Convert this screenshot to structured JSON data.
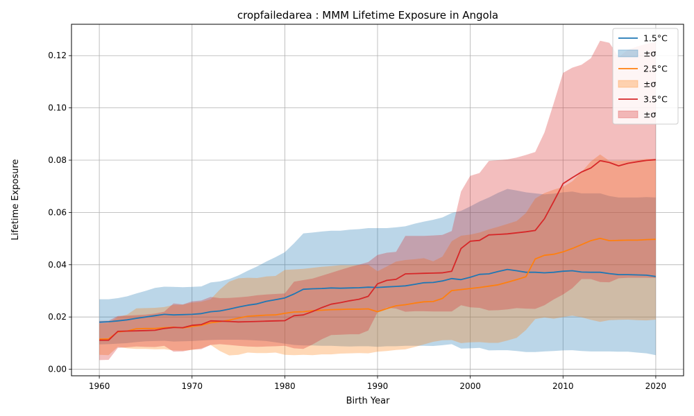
{
  "chart_data": {
    "type": "line",
    "title": "cropfailedarea : MMM Lifetime Exposure in Angola",
    "xlabel": "Birth Year",
    "ylabel": "Lifetime Exposure",
    "xlim": [
      1957,
      2023
    ],
    "ylim": [
      -0.0025,
      0.132
    ],
    "xticks": [
      1960,
      1970,
      1980,
      1990,
      2000,
      2010,
      2020
    ],
    "xtick_labels": [
      "1960",
      "1970",
      "1980",
      "1990",
      "2000",
      "2010",
      "2020"
    ],
    "yticks": [
      0.0,
      0.02,
      0.04,
      0.06,
      0.08,
      0.1,
      0.12
    ],
    "ytick_labels": [
      "0.00",
      "0.02",
      "0.04",
      "0.06",
      "0.08",
      "0.10",
      "0.12"
    ],
    "grid": true,
    "legend_position": "top-right",
    "legend": [
      {
        "label": "1.5°C",
        "kind": "line",
        "color": "#1f77b4"
      },
      {
        "label": "±σ",
        "kind": "band",
        "color": "#1f77b4"
      },
      {
        "label": "2.5°C",
        "kind": "line",
        "color": "#ff7f0e"
      },
      {
        "label": "±σ",
        "kind": "band",
        "color": "#ff7f0e"
      },
      {
        "label": "3.5°C",
        "kind": "line",
        "color": "#d62728"
      },
      {
        "label": "±σ",
        "kind": "band",
        "color": "#d62728"
      }
    ],
    "x": [
      1960,
      1961,
      1962,
      1963,
      1964,
      1965,
      1966,
      1967,
      1968,
      1969,
      1970,
      1971,
      1972,
      1973,
      1974,
      1975,
      1976,
      1977,
      1978,
      1979,
      1980,
      1981,
      1982,
      1983,
      1984,
      1985,
      1986,
      1987,
      1988,
      1989,
      1990,
      1991,
      1992,
      1993,
      1994,
      1995,
      1996,
      1997,
      1998,
      1999,
      2000,
      2001,
      2002,
      2003,
      2004,
      2005,
      2006,
      2007,
      2008,
      2009,
      2010,
      2011,
      2012,
      2013,
      2014,
      2015,
      2016,
      2017,
      2018,
      2019,
      2020
    ],
    "series": [
      {
        "name": "1.5°C",
        "color": "#1f77b4",
        "values": [
          0.018,
          0.0182,
          0.0185,
          0.0189,
          0.0195,
          0.02,
          0.0205,
          0.021,
          0.0208,
          0.0209,
          0.021,
          0.0213,
          0.022,
          0.0223,
          0.023,
          0.0238,
          0.0245,
          0.025,
          0.026,
          0.0266,
          0.0273,
          0.0288,
          0.0306,
          0.0308,
          0.0309,
          0.0311,
          0.031,
          0.0311,
          0.0312,
          0.0314,
          0.0313,
          0.0315,
          0.0317,
          0.0319,
          0.0325,
          0.0331,
          0.0332,
          0.0338,
          0.0347,
          0.0343,
          0.0352,
          0.0363,
          0.0365,
          0.0374,
          0.0382,
          0.0377,
          0.0371,
          0.0371,
          0.0369,
          0.0371,
          0.0375,
          0.0377,
          0.0372,
          0.0371,
          0.0371,
          0.0366,
          0.0362,
          0.0362,
          0.0361,
          0.036,
          0.0355
        ],
        "lower": [
          0.0095,
          0.0096,
          0.0098,
          0.01,
          0.0104,
          0.0107,
          0.0108,
          0.0109,
          0.0106,
          0.0107,
          0.0108,
          0.011,
          0.0112,
          0.0113,
          0.0113,
          0.0113,
          0.0112,
          0.011,
          0.0108,
          0.0103,
          0.0098,
          0.0093,
          0.0091,
          0.0091,
          0.009,
          0.009,
          0.0088,
          0.0087,
          0.0088,
          0.0088,
          0.0086,
          0.0088,
          0.0088,
          0.009,
          0.009,
          0.009,
          0.0089,
          0.0092,
          0.0096,
          0.0079,
          0.008,
          0.0082,
          0.0072,
          0.0073,
          0.0073,
          0.007,
          0.0066,
          0.0066,
          0.0068,
          0.007,
          0.0072,
          0.0073,
          0.007,
          0.0068,
          0.0068,
          0.0068,
          0.0067,
          0.0067,
          0.0064,
          0.0061,
          0.0054
        ],
        "upper": [
          0.0268,
          0.0268,
          0.0272,
          0.0279,
          0.029,
          0.03,
          0.0311,
          0.0316,
          0.0315,
          0.0314,
          0.0315,
          0.0317,
          0.0332,
          0.0336,
          0.0345,
          0.0359,
          0.0377,
          0.0393,
          0.0412,
          0.0429,
          0.0448,
          0.0482,
          0.052,
          0.0523,
          0.0527,
          0.053,
          0.053,
          0.0534,
          0.0536,
          0.054,
          0.054,
          0.054,
          0.0543,
          0.0547,
          0.0557,
          0.0565,
          0.0572,
          0.0581,
          0.0598,
          0.0606,
          0.0623,
          0.0642,
          0.0657,
          0.0675,
          0.069,
          0.0684,
          0.0677,
          0.0673,
          0.0669,
          0.0672,
          0.0677,
          0.068,
          0.0673,
          0.0673,
          0.0673,
          0.0663,
          0.0657,
          0.0657,
          0.0657,
          0.0659,
          0.0657
        ]
      },
      {
        "name": "2.5°C",
        "color": "#ff7f0e",
        "values": [
          0.0115,
          0.0116,
          0.0143,
          0.0146,
          0.0155,
          0.0156,
          0.0156,
          0.0159,
          0.0161,
          0.0158,
          0.0164,
          0.0168,
          0.0178,
          0.0182,
          0.0188,
          0.0196,
          0.0203,
          0.0205,
          0.0207,
          0.0208,
          0.0214,
          0.0219,
          0.022,
          0.0224,
          0.0226,
          0.0228,
          0.0229,
          0.023,
          0.023,
          0.0231,
          0.022,
          0.0232,
          0.0243,
          0.0247,
          0.0253,
          0.0258,
          0.0259,
          0.0271,
          0.0301,
          0.0305,
          0.0309,
          0.0313,
          0.0318,
          0.0323,
          0.0333,
          0.0343,
          0.0354,
          0.0422,
          0.0436,
          0.044,
          0.0449,
          0.0462,
          0.0477,
          0.0492,
          0.0501,
          0.0492,
          0.0493,
          0.0494,
          0.0494,
          0.0496,
          0.0497
        ],
        "lower": [
          0.0055,
          0.0054,
          0.0086,
          0.008,
          0.0078,
          0.0078,
          0.0076,
          0.0077,
          0.0072,
          0.0071,
          0.0074,
          0.008,
          0.0093,
          0.007,
          0.0053,
          0.0055,
          0.0064,
          0.0062,
          0.0062,
          0.0064,
          0.0055,
          0.0054,
          0.0055,
          0.0054,
          0.0057,
          0.0057,
          0.006,
          0.0061,
          0.0062,
          0.0061,
          0.0067,
          0.007,
          0.0074,
          0.0076,
          0.0085,
          0.0095,
          0.0105,
          0.0111,
          0.0112,
          0.01,
          0.0103,
          0.0104,
          0.0101,
          0.0101,
          0.011,
          0.012,
          0.015,
          0.0192,
          0.0198,
          0.0193,
          0.02,
          0.0205,
          0.0199,
          0.0189,
          0.0181,
          0.0188,
          0.0189,
          0.019,
          0.0188,
          0.0187,
          0.019
        ],
        "upper": [
          0.0175,
          0.0178,
          0.02,
          0.0209,
          0.0233,
          0.0234,
          0.0235,
          0.0238,
          0.0246,
          0.0247,
          0.0255,
          0.0258,
          0.0268,
          0.0305,
          0.0335,
          0.0348,
          0.035,
          0.0349,
          0.0355,
          0.0357,
          0.038,
          0.0382,
          0.0384,
          0.0388,
          0.0392,
          0.0395,
          0.0398,
          0.0398,
          0.0399,
          0.04,
          0.0375,
          0.0393,
          0.0412,
          0.0418,
          0.0421,
          0.0425,
          0.0413,
          0.0431,
          0.049,
          0.0511,
          0.0515,
          0.0523,
          0.0535,
          0.0545,
          0.0556,
          0.0567,
          0.0598,
          0.0653,
          0.0674,
          0.0687,
          0.0698,
          0.0719,
          0.0755,
          0.0795,
          0.0822,
          0.0797,
          0.0797,
          0.0798,
          0.08,
          0.0805,
          0.0805
        ]
      },
      {
        "name": "3.5°C",
        "color": "#d62728",
        "values": [
          0.0111,
          0.0111,
          0.0145,
          0.0146,
          0.0147,
          0.0148,
          0.0149,
          0.0156,
          0.016,
          0.0159,
          0.0168,
          0.0171,
          0.0185,
          0.0184,
          0.0183,
          0.0181,
          0.0182,
          0.0183,
          0.0184,
          0.0185,
          0.0186,
          0.0205,
          0.0208,
          0.0221,
          0.0236,
          0.0249,
          0.0255,
          0.0262,
          0.0268,
          0.0279,
          0.0327,
          0.034,
          0.0344,
          0.0365,
          0.0366,
          0.0367,
          0.0368,
          0.0369,
          0.0375,
          0.0462,
          0.049,
          0.0493,
          0.0514,
          0.0516,
          0.0518,
          0.0522,
          0.0526,
          0.0531,
          0.0576,
          0.0642,
          0.071,
          0.0733,
          0.0755,
          0.077,
          0.0798,
          0.0791,
          0.0778,
          0.0788,
          0.0794,
          0.0799,
          0.0802
        ],
        "lower": [
          0.0035,
          0.0036,
          0.0082,
          0.0084,
          0.0087,
          0.0086,
          0.0085,
          0.009,
          0.0067,
          0.0068,
          0.0075,
          0.0077,
          0.0093,
          0.0096,
          0.0093,
          0.009,
          0.0087,
          0.0086,
          0.0087,
          0.0088,
          0.009,
          0.008,
          0.0078,
          0.0095,
          0.0115,
          0.0131,
          0.0132,
          0.0134,
          0.0134,
          0.0148,
          0.0218,
          0.0236,
          0.0232,
          0.022,
          0.0222,
          0.0222,
          0.0221,
          0.0221,
          0.0221,
          0.0245,
          0.0237,
          0.0235,
          0.0225,
          0.0226,
          0.0229,
          0.0234,
          0.0232,
          0.0231,
          0.0245,
          0.0267,
          0.0286,
          0.031,
          0.0345,
          0.0345,
          0.0334,
          0.0333,
          0.0348,
          0.035,
          0.035,
          0.035,
          0.0349
        ],
        "upper": [
          0.0185,
          0.0186,
          0.0204,
          0.0205,
          0.0207,
          0.0209,
          0.0213,
          0.022,
          0.0252,
          0.0248,
          0.026,
          0.0263,
          0.0277,
          0.0272,
          0.0273,
          0.0275,
          0.0278,
          0.0283,
          0.0286,
          0.0288,
          0.029,
          0.0335,
          0.0341,
          0.0347,
          0.0358,
          0.0369,
          0.038,
          0.0391,
          0.04,
          0.041,
          0.0437,
          0.0446,
          0.0449,
          0.051,
          0.051,
          0.051,
          0.0512,
          0.0514,
          0.0529,
          0.068,
          0.074,
          0.0751,
          0.0797,
          0.08,
          0.0803,
          0.081,
          0.082,
          0.0831,
          0.0906,
          0.1018,
          0.1134,
          0.1154,
          0.1165,
          0.119,
          0.1257,
          0.1249,
          0.1195,
          0.1222,
          0.1235,
          0.1245,
          0.1252
        ]
      }
    ]
  }
}
